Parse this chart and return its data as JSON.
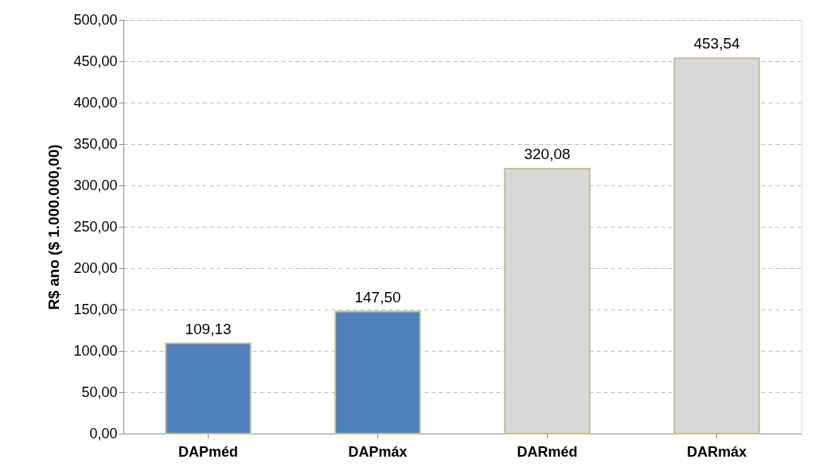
{
  "chart_data": {
    "type": "bar",
    "ylabel": "R$ ano ($ 1.000.000,00)",
    "categories": [
      "DAPméd",
      "DAPmáx",
      "DARméd",
      "DARmáx"
    ],
    "values": [
      109.13,
      147.5,
      320.08,
      453.54
    ],
    "colors": [
      "#4f81bd",
      "#4f81bd",
      "#d9d9d9",
      "#d9d9d9"
    ],
    "value_labels": [
      "109,13",
      "147,50",
      "320,08",
      "453,54"
    ],
    "ylim": [
      0,
      500
    ],
    "yticks": [
      {
        "value": 0,
        "label": "0,00"
      },
      {
        "value": 50,
        "label": "50,00"
      },
      {
        "value": 100,
        "label": "100,00"
      },
      {
        "value": 150,
        "label": "150,00"
      },
      {
        "value": 200,
        "label": "200,00"
      },
      {
        "value": 250,
        "label": "250,00"
      },
      {
        "value": 300,
        "label": "300,00"
      },
      {
        "value": 350,
        "label": "350,00"
      },
      {
        "value": 400,
        "label": "400,00"
      },
      {
        "value": 450,
        "label": "450,00"
      },
      {
        "value": 500,
        "label": "500,00"
      }
    ],
    "grid": "y"
  }
}
